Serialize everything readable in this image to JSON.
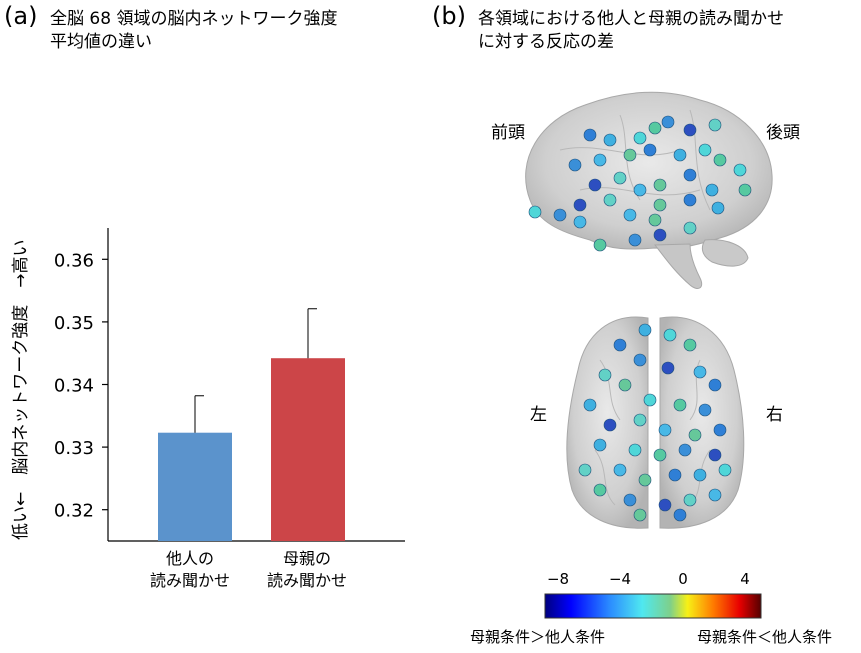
{
  "panel_a": {
    "letter": "(a)",
    "title_line1": "全脳 68 領域の脳内ネットワーク強度",
    "title_line2": "平均値の違い",
    "ylabel": "低い←　脳内ネットワーク強度　→高い"
  },
  "chart_data": {
    "type": "bar",
    "title": "全脳 68 領域の脳内ネットワーク強度 平均値の違い",
    "ylabel": "低い←　脳内ネットワーク強度　→高い",
    "xlabel": "",
    "ylim": [
      0.315,
      0.365
    ],
    "yticks": [
      "0.32",
      "0.33",
      "0.34",
      "0.35",
      "0.36"
    ],
    "ytick_values": [
      0.32,
      0.33,
      0.34,
      0.35,
      0.36
    ],
    "categories": [
      {
        "line1": "他人の",
        "line2": "読み聞かせ"
      },
      {
        "line1": "母親の",
        "line2": "読み聞かせ"
      }
    ],
    "values": [
      0.3323,
      0.3442
    ],
    "error_upper": [
      0.3382,
      0.3521
    ],
    "colors": [
      "#5b93cc",
      "#cc4548"
    ]
  },
  "panel_b": {
    "letter": "(b)",
    "title_line1": "各領域における他人と母親の読み聞かせ",
    "title_line2": "に対する反応の差",
    "label_front": "前頭",
    "label_back": "後頭",
    "label_left": "左",
    "label_right": "右",
    "colorbar": {
      "ticks": [
        "−8",
        "−4",
        "0",
        "4"
      ],
      "tick_values": [
        -8,
        -4,
        0,
        4
      ],
      "range": [
        -9,
        5
      ],
      "caption_left": "母親条件＞他人条件",
      "caption_right": "母親条件＜他人条件"
    }
  }
}
